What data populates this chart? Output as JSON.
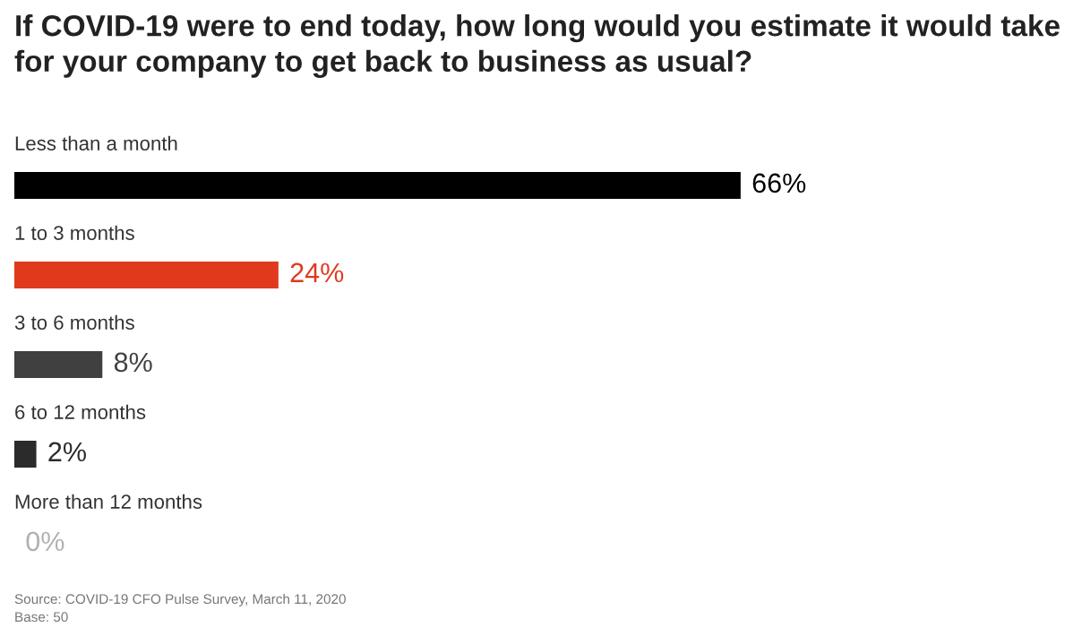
{
  "chart_data": {
    "type": "bar",
    "orientation": "horizontal",
    "title": "If COVID-19 were to end today, how long would you estimate it would take\nfor your company to get back to business as usual?",
    "categories": [
      "Less than a month",
      "1 to 3 months",
      "3 to 6 months",
      "6 to 12 months",
      "More than 12 months"
    ],
    "values": [
      66,
      24,
      8,
      2,
      0
    ],
    "colors": [
      "#000000",
      "#e03a1e",
      "#404040",
      "#2b2b2b",
      "#b0b0b0"
    ],
    "value_labels": [
      "66%",
      "24%",
      "8%",
      "2%",
      "0%"
    ],
    "annotations": [
      "Source: COVID-19 CFO Pulse Survey, March 11, 2020",
      "Base: 50"
    ]
  }
}
